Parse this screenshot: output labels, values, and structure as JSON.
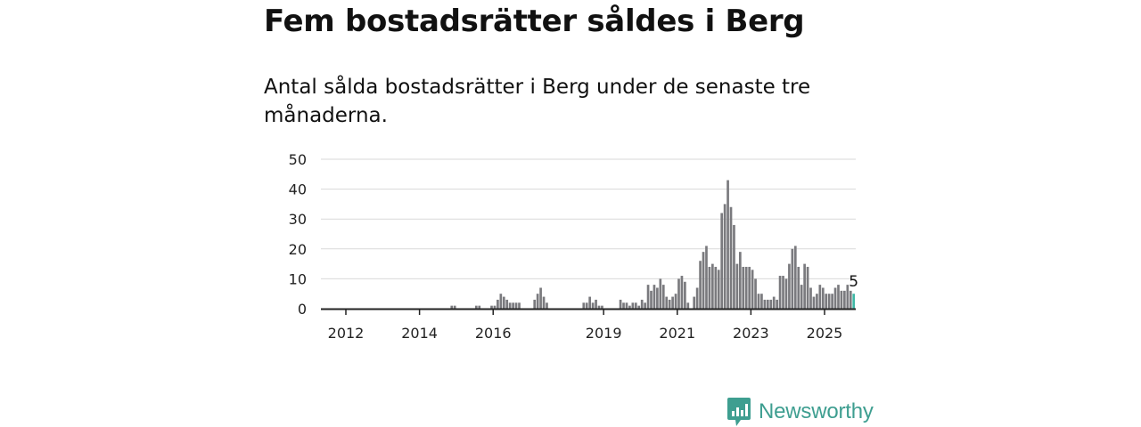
{
  "header": {
    "title": "Fem bostadsrätter såldes i Berg",
    "subtitle": "Antal sålda bostadsrätter i Berg under de senaste tre månaderna."
  },
  "branding": {
    "name": "Newsworthy",
    "color": "#3e9e90",
    "icon": "newsworthy-logo-icon"
  },
  "chart_data": {
    "type": "bar",
    "title": "Fem bostadsrätter såldes i Berg",
    "subtitle": "Antal sålda bostadsrätter i Berg under de senaste tre månaderna.",
    "xlabel": "",
    "ylabel": "",
    "ylim": [
      0,
      50
    ],
    "yticks": [
      0,
      10,
      20,
      30,
      40,
      50
    ],
    "xticks": [
      {
        "label": "2012",
        "year": 2012
      },
      {
        "label": "2014",
        "year": 2014
      },
      {
        "label": "2016",
        "year": 2016
      },
      {
        "label": "2019",
        "year": 2019
      },
      {
        "label": "2021",
        "year": 2021
      },
      {
        "label": "2023",
        "year": 2023
      },
      {
        "label": "2025",
        "year": 2025
      }
    ],
    "grid": true,
    "bar_color": "#7a7a7e",
    "highlight_color": "#3fb8a6",
    "highlight_label": "5",
    "series": [
      {
        "start": "2011-07",
        "values": [
          0,
          0,
          0,
          0,
          0,
          0,
          0,
          0,
          0,
          0,
          0,
          0,
          0,
          0,
          0,
          0,
          0,
          0,
          0,
          0,
          0,
          0,
          0,
          0,
          0,
          0,
          0,
          0,
          0,
          0,
          0,
          0,
          0,
          0,
          0,
          0,
          0,
          0,
          0,
          0,
          1,
          1,
          0,
          0,
          0,
          0,
          0,
          0,
          1,
          1,
          0,
          0,
          0,
          1,
          1,
          3,
          5,
          4,
          3,
          2,
          2,
          2,
          2,
          0,
          0,
          0,
          0,
          3,
          5,
          7,
          4,
          2,
          0,
          0,
          0,
          0,
          0,
          0,
          0,
          0,
          0,
          0,
          0,
          2,
          2,
          4,
          2,
          3,
          1,
          1,
          0,
          0,
          0,
          0,
          0,
          3,
          2,
          2,
          1,
          2,
          2,
          1,
          3,
          2,
          8,
          6,
          8,
          7,
          10,
          8,
          4,
          3,
          4,
          5,
          10,
          11,
          9,
          2,
          0,
          4,
          7,
          16,
          19,
          21,
          14,
          15,
          14,
          13,
          32,
          35,
          43,
          34,
          28,
          15,
          19,
          14,
          14,
          14,
          13,
          10,
          5,
          5,
          3,
          3,
          3,
          4,
          3,
          11,
          11,
          10,
          15,
          20,
          21,
          14,
          8,
          15,
          14,
          7,
          4,
          5,
          8,
          7,
          5,
          5,
          5,
          7,
          8,
          6,
          6,
          8,
          6,
          5
        ]
      }
    ]
  }
}
